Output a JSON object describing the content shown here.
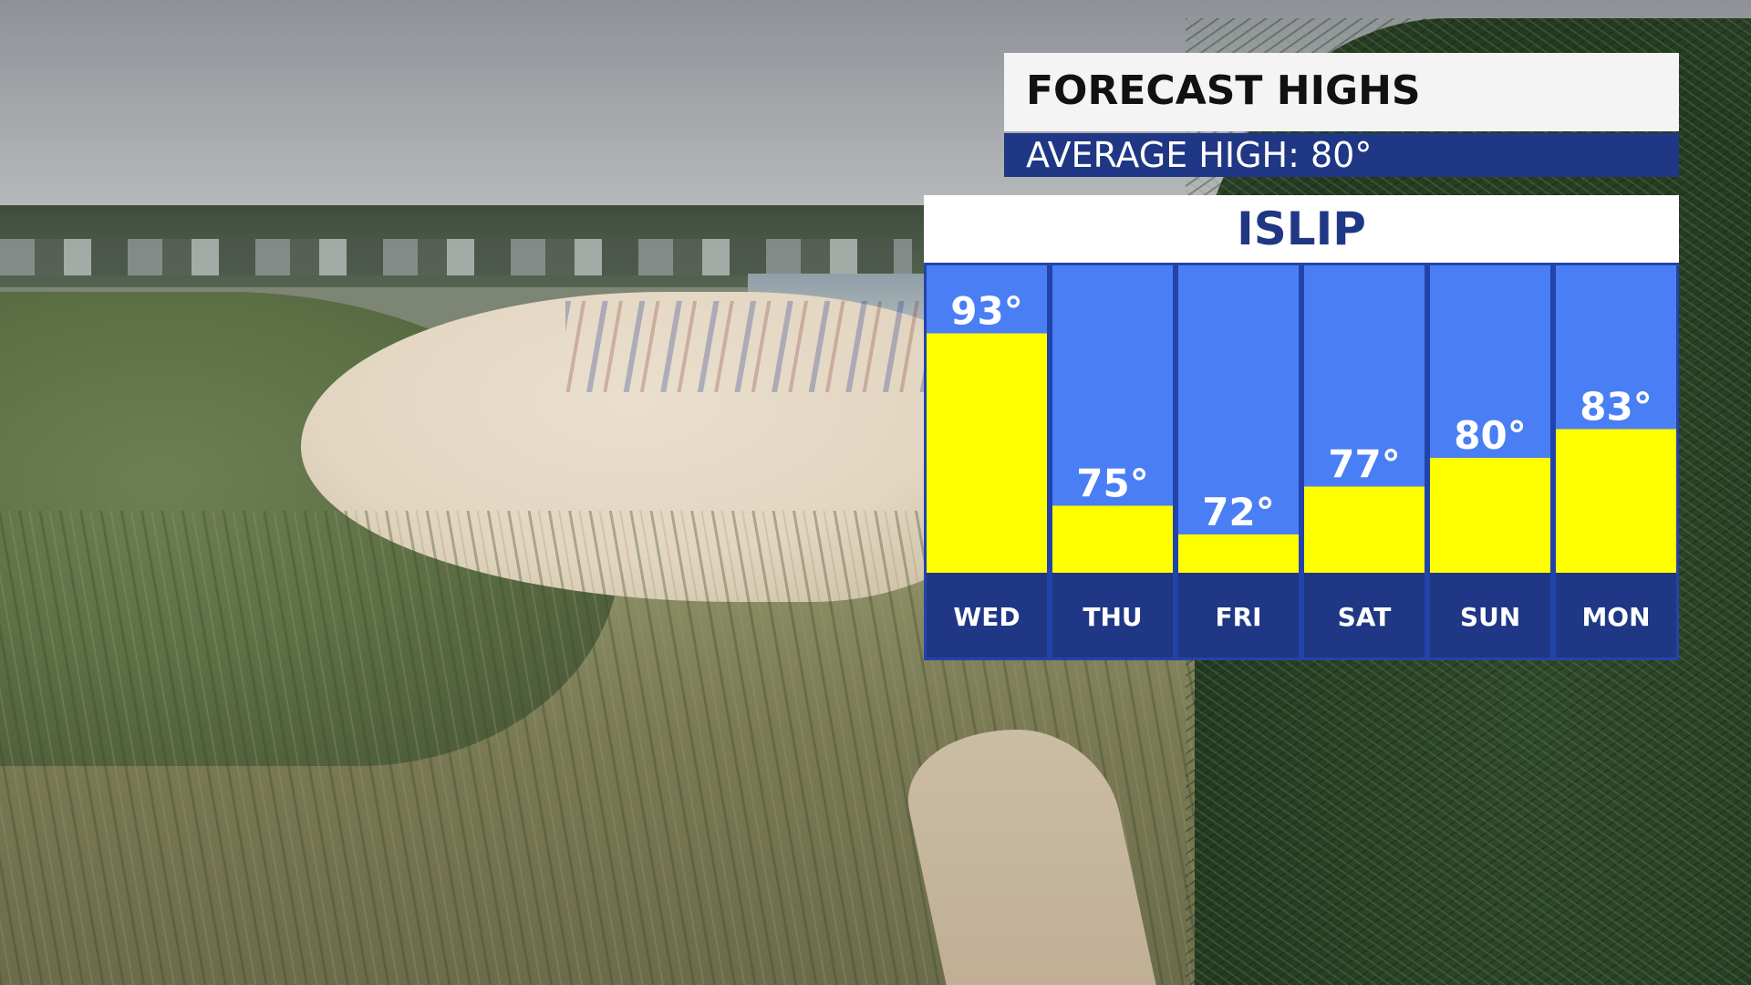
{
  "graphic": {
    "title": "FORECAST HIGHS",
    "subtitle": "AVERAGE HIGH: 80°",
    "location": "ISLIP"
  },
  "colors": {
    "column_bg": "#4a7ef5",
    "bar_fill": "#ffff00",
    "day_band": "#1f3784",
    "border": "#2244aa"
  },
  "chart_data": {
    "type": "bar",
    "title": "FORECAST HIGHS",
    "subtitle": "AVERAGE HIGH: 80°",
    "categories": [
      "WED",
      "THU",
      "FRI",
      "SAT",
      "SUN",
      "MON"
    ],
    "values": [
      93,
      75,
      72,
      77,
      80,
      83
    ],
    "value_labels": [
      "93°",
      "75°",
      "72°",
      "77°",
      "80°",
      "83°"
    ],
    "ylim": [
      68,
      100
    ],
    "grid": false,
    "legend": "none"
  }
}
